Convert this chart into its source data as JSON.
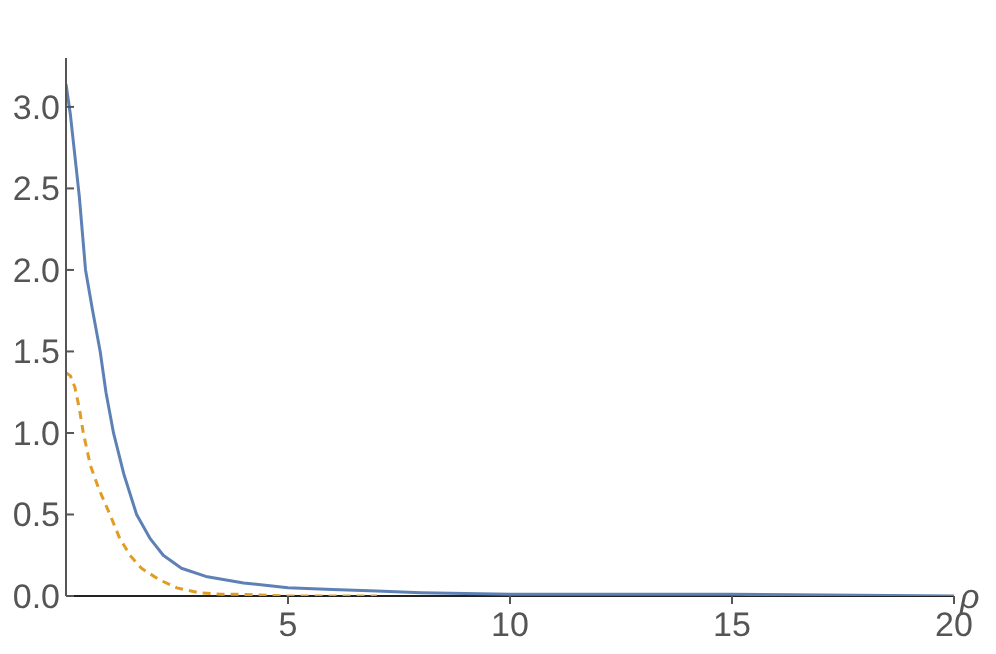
{
  "chart_data": {
    "type": "line",
    "xlabel": "ρ",
    "xlim": [
      0,
      20
    ],
    "ylim": [
      0,
      3.3
    ],
    "xticks": [
      5,
      10,
      15,
      20
    ],
    "yticks": [
      {
        "value": 0,
        "label": "0.0"
      },
      {
        "value": 0.5,
        "label": "0.5"
      },
      {
        "value": 1,
        "label": "1.0"
      },
      {
        "value": 1.5,
        "label": "1.5"
      },
      {
        "value": 2,
        "label": "2.0"
      },
      {
        "value": 2.5,
        "label": "2.5"
      },
      {
        "value": 3,
        "label": "3.0"
      }
    ],
    "grid": false,
    "marker": "none",
    "series": [
      {
        "color": "#5e81b5",
        "line_style": "solid",
        "x": [
          0,
          0.1,
          0.2,
          0.3,
          0.44,
          0.6,
          0.77,
          0.9,
          1.07,
          1.3,
          1.59,
          1.9,
          2.19,
          2.6,
          3.15,
          4,
          5,
          6,
          7,
          8,
          10,
          12,
          15,
          20
        ],
        "values": [
          3.14,
          2.95,
          2.7,
          2.45,
          2.0,
          1.75,
          1.5,
          1.25,
          1.0,
          0.75,
          0.5,
          0.35,
          0.25,
          0.17,
          0.12,
          0.08,
          0.05,
          0.04,
          0.03,
          0.02,
          0.01,
          0.01,
          0.01,
          0
        ]
      },
      {
        "color": "#e19c24",
        "line_style": "dashed",
        "x": [
          0,
          0.1,
          0.2,
          0.3,
          0.39,
          0.55,
          0.75,
          0.99,
          1.2,
          1.44,
          1.7,
          2.1,
          2.5,
          3,
          3.5,
          4,
          5,
          7
        ],
        "values": [
          1.37,
          1.35,
          1.28,
          1.15,
          1.0,
          0.8,
          0.65,
          0.5,
          0.36,
          0.25,
          0.17,
          0.1,
          0.05,
          0.02,
          0.01,
          0.01,
          0,
          0
        ]
      }
    ]
  }
}
